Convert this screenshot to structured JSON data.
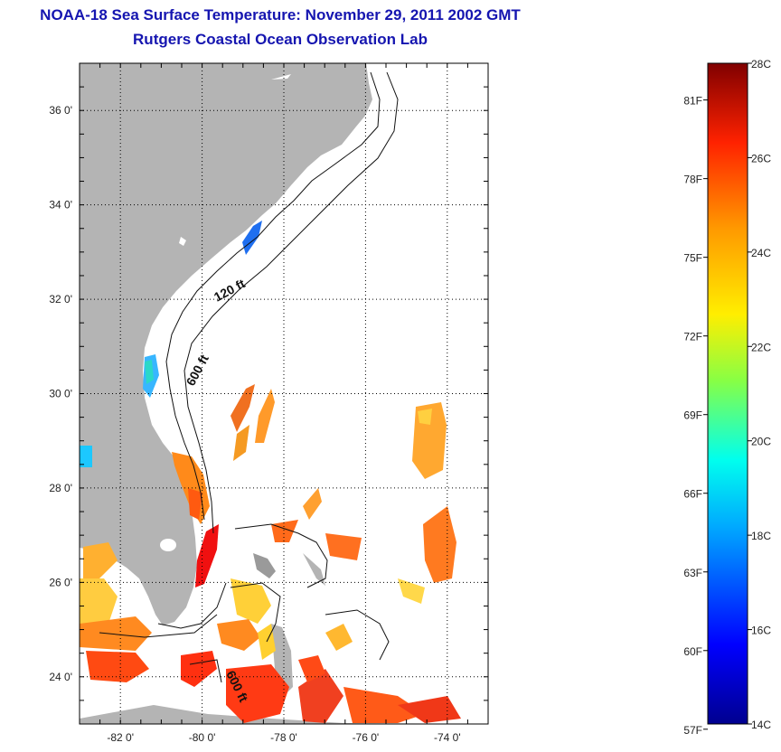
{
  "title_line1": "NOAA-18 Sea Surface Temperature:  November 29, 2011 2002 GMT",
  "title_line2": "Rutgers Coastal Ocean Observation Lab",
  "map": {
    "lon_range": [
      -83.0,
      -73.0
    ],
    "lat_range": [
      23.0,
      37.0
    ],
    "lon_ticks": [
      {
        "value": -82,
        "label": "-82 0'"
      },
      {
        "value": -80,
        "label": "-80 0'"
      },
      {
        "value": -78,
        "label": "-78 0'"
      },
      {
        "value": -76,
        "label": "-76 0'"
      },
      {
        "value": -74,
        "label": "-74 0'"
      }
    ],
    "lat_ticks": [
      {
        "value": 24,
        "label": "24 0'"
      },
      {
        "value": 26,
        "label": "26 0'"
      },
      {
        "value": 28,
        "label": "28 0'"
      },
      {
        "value": 30,
        "label": "30 0'"
      },
      {
        "value": 32,
        "label": "32 0'"
      },
      {
        "value": 34,
        "label": "34 0'"
      },
      {
        "value": 36,
        "label": "36 0'"
      }
    ],
    "grid": "dotted",
    "land_color": "#b4b4b4",
    "depth_labels": [
      "120 ft",
      "600 ft",
      "600 ft"
    ]
  },
  "colorbar": {
    "range_c": [
      14,
      28
    ],
    "celsius_ticks": [
      {
        "value": 28,
        "label": "28C"
      },
      {
        "value": 26,
        "label": "26C"
      },
      {
        "value": 24,
        "label": "24C"
      },
      {
        "value": 22,
        "label": "22C"
      },
      {
        "value": 20,
        "label": "20C"
      },
      {
        "value": 18,
        "label": "18C"
      },
      {
        "value": 16,
        "label": "16C"
      },
      {
        "value": 14,
        "label": "14C"
      }
    ],
    "fahrenheit_ticks": [
      {
        "value": 81,
        "label": "81F"
      },
      {
        "value": 78,
        "label": "78F"
      },
      {
        "value": 75,
        "label": "75F"
      },
      {
        "value": 72,
        "label": "72F"
      },
      {
        "value": 69,
        "label": "69F"
      },
      {
        "value": 66,
        "label": "66F"
      },
      {
        "value": 63,
        "label": "63F"
      },
      {
        "value": 60,
        "label": "60F"
      },
      {
        "value": 57,
        "label": "57F"
      }
    ]
  }
}
